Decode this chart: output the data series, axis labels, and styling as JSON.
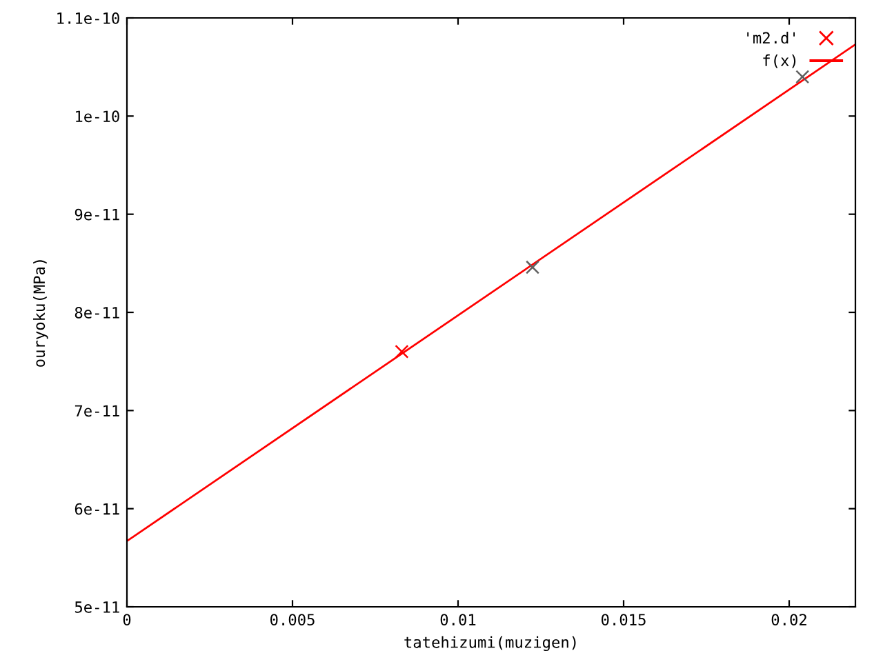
{
  "chart_data": {
    "type": "scatter",
    "xlabel": "tatehizumi(muzigen)",
    "ylabel": "ouryoku(MPa)",
    "series": [
      {
        "name": "'m2.d'",
        "color": "#ff0000",
        "colors": [
          "#ff0000",
          "#606060",
          "#606060"
        ],
        "marker": "cross",
        "x": [
          0.0083,
          0.01225,
          0.0204
        ],
        "values": [
          7.6e-11,
          8.46e-11,
          1.04e-10
        ]
      },
      {
        "name": "f(x)",
        "type": "line",
        "color": "#ff0000",
        "marker": "none",
        "x": [
          0,
          0.022
        ],
        "values": [
          5.67e-11,
          1.073e-10
        ]
      }
    ],
    "xlim": [
      0,
      0.022
    ],
    "ylim": [
      5e-11,
      1.1e-10
    ],
    "xticks": [
      0,
      0.005,
      0.01,
      0.015,
      0.02
    ],
    "yticks": [
      {
        "value": 5e-11,
        "label": "5e-11"
      },
      {
        "value": 6e-11,
        "label": "6e-11"
      },
      {
        "value": 7e-11,
        "label": "7e-11"
      },
      {
        "value": 8e-11,
        "label": "8e-11"
      },
      {
        "value": 9e-11,
        "label": "9e-11"
      },
      {
        "value": 1e-10,
        "label": "1e-10"
      },
      {
        "value": 1.1e-10,
        "label": "1.1e-10"
      }
    ],
    "grid": false,
    "legend": "top right"
  }
}
